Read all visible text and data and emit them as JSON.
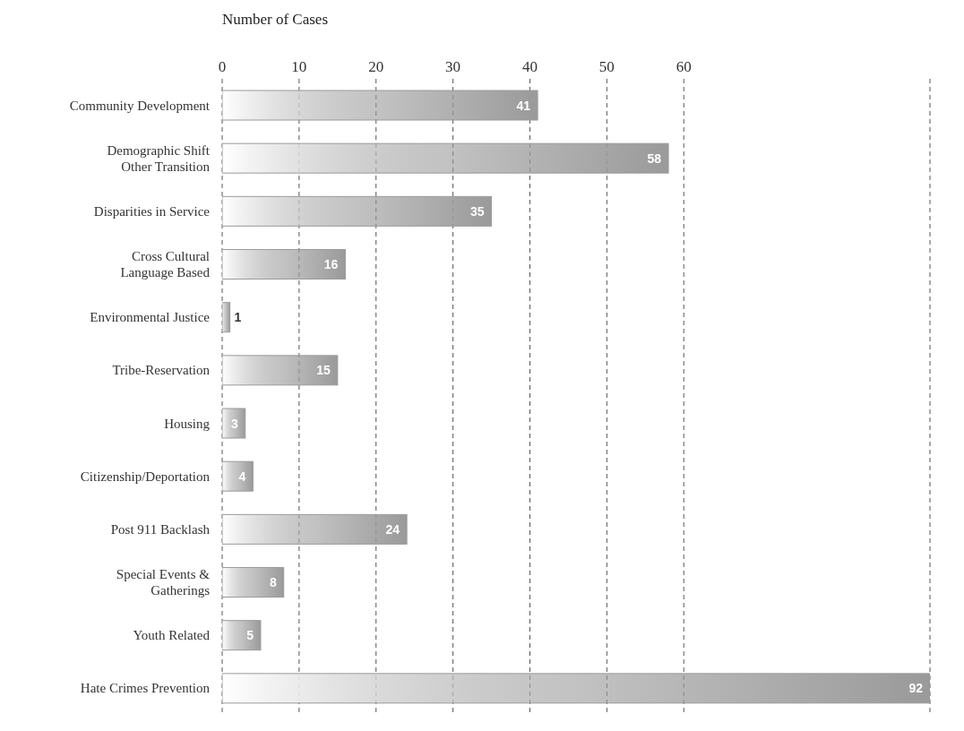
{
  "chart_data": {
    "type": "bar",
    "orientation": "horizontal",
    "xlabel": "Number of Cases",
    "categories": [
      "Community Development",
      "Demographic Shift\nOther Transition",
      "Disparities in Service",
      "Cross Cultural\nLanguage Based",
      "Environmental Justice",
      "Tribe-Reservation",
      "Housing",
      "Citizenship/Deportation",
      "Post 911 Backlash",
      "Special Events &\nGatherings",
      "Youth Related",
      "Hate Crimes Prevention"
    ],
    "values": [
      41,
      58,
      35,
      16,
      1,
      15,
      3,
      4,
      24,
      8,
      5,
      92
    ],
    "color": "#9a9a9a",
    "xlim": [
      0,
      92
    ],
    "xticks": [
      0,
      10,
      20,
      30,
      40,
      50,
      60
    ],
    "grid": "x",
    "data_labels": true
  }
}
